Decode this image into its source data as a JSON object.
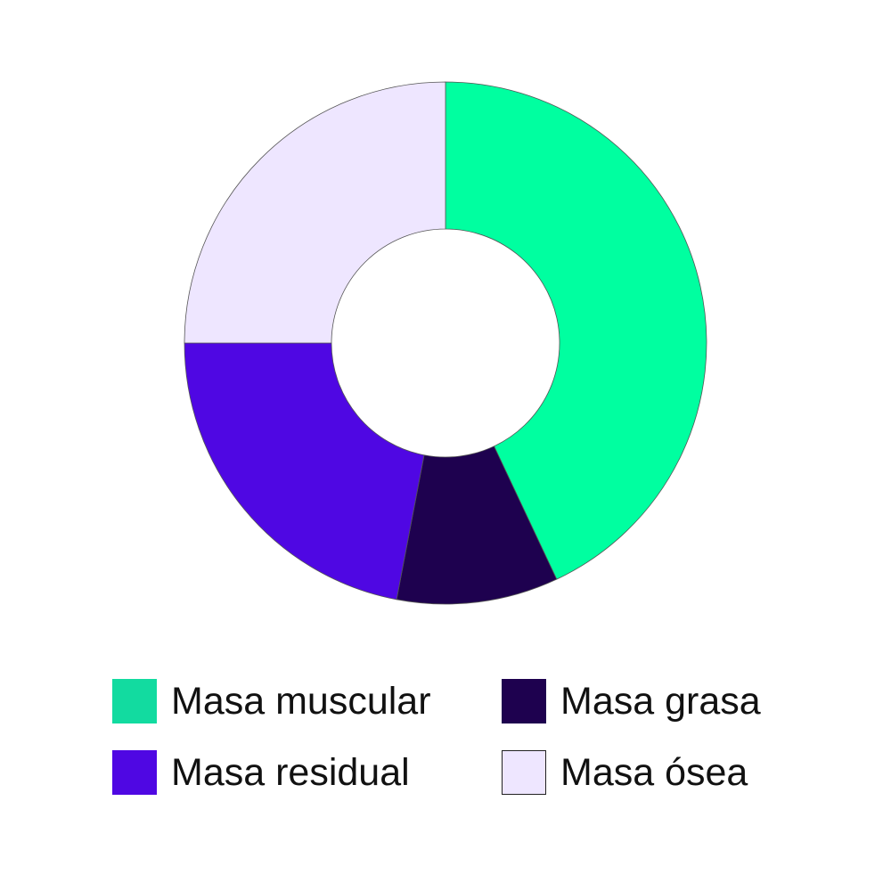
{
  "chart_data": {
    "type": "pie",
    "donut": true,
    "title": "",
    "slices": [
      {
        "label": "Masa muscular",
        "value": 43,
        "color": "#00FFA0",
        "legend_color": "#12DBA0"
      },
      {
        "label": "Masa grasa",
        "value": 10,
        "color": "#1E014F",
        "legend_color": "#1E014F"
      },
      {
        "label": "Masa residual",
        "value": 22,
        "color": "#4F07E3",
        "legend_color": "#4F07E3"
      },
      {
        "label": "Masa ósea",
        "value": 25,
        "color": "#EEE6FF",
        "legend_color": "#EEE6FF"
      }
    ],
    "legend_position": "bottom"
  }
}
